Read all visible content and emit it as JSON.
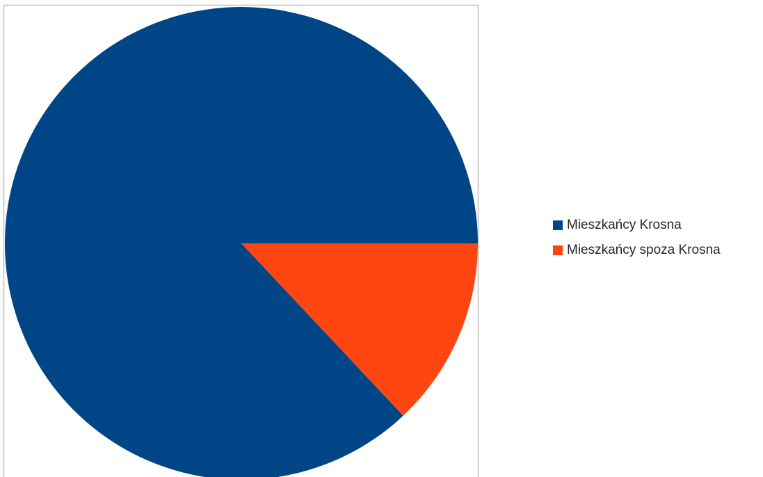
{
  "chart_data": {
    "type": "pie",
    "categories": [
      "Mieszkańcy Krosna",
      "Mieszkańcy spoza Krosna"
    ],
    "values": [
      87,
      13
    ],
    "colors": [
      "#004585",
      "#FF4612"
    ],
    "title": "",
    "legend_position": "right",
    "start_angle": "3 o'clock, counterclockwise"
  },
  "legend": {
    "items": [
      {
        "label": "Mieszkańcy Krosna",
        "color": "#004585"
      },
      {
        "label": "Mieszkańcy spoza Krosna",
        "color": "#FF4612"
      }
    ]
  }
}
